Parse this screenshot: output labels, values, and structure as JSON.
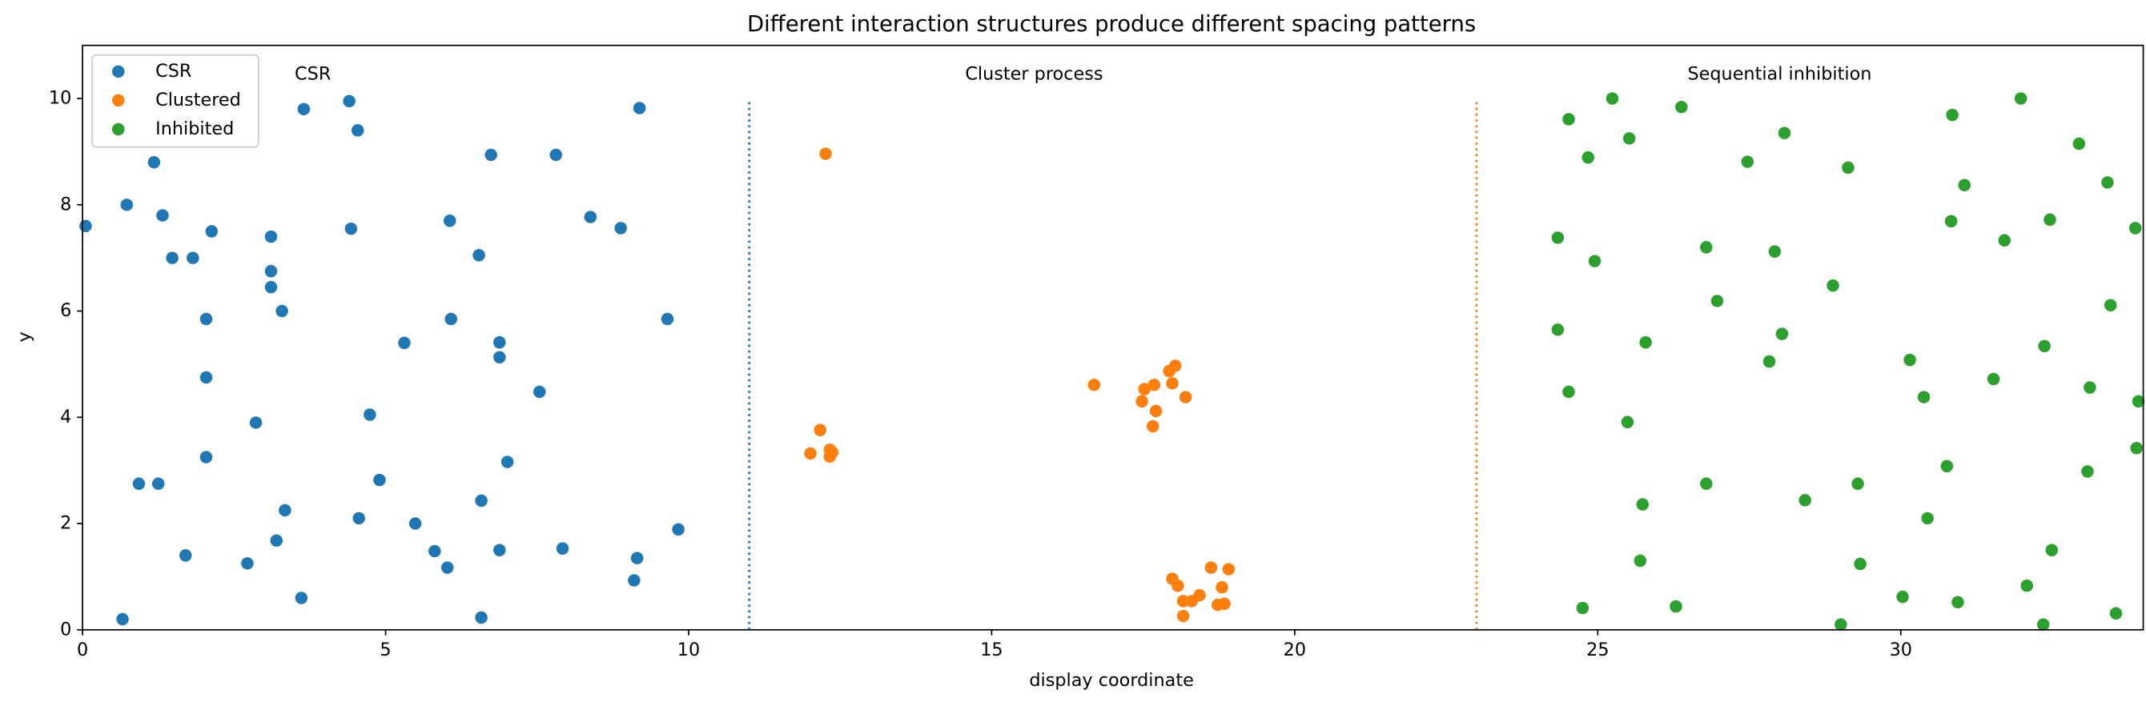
{
  "chart_data": {
    "type": "scatter",
    "title": "Different interaction structures produce different spacing patterns",
    "xlabel": "display coordinate",
    "ylabel": "y",
    "xlim": [
      0,
      34
    ],
    "ylim": [
      0,
      11
    ],
    "xticks": [
      0,
      5,
      10,
      15,
      20,
      25,
      30
    ],
    "yticks": [
      0,
      2,
      4,
      6,
      8,
      10
    ],
    "grid": false,
    "legend": "upper left",
    "annotations": [
      {
        "text": "CSR",
        "x": 3.8,
        "y": 10.45
      },
      {
        "text": "Cluster process",
        "x": 15.7,
        "y": 10.45
      },
      {
        "text": "Sequential inhibition",
        "x": 28.0,
        "y": 10.45
      }
    ],
    "vlines": [
      {
        "x": 11,
        "ymin": 0,
        "ymax": 10,
        "color": "#1f77b4"
      },
      {
        "x": 23,
        "ymin": 0,
        "ymax": 10,
        "color": "#ff7f0e"
      }
    ],
    "series": [
      {
        "name": "CSR",
        "color": "#1f77b4",
        "x": [
          0.05,
          0.73,
          1.18,
          1.32,
          1.48,
          1.82,
          2.13,
          0.93,
          1.25,
          0.66,
          1.7,
          2.04,
          2.04,
          2.04,
          2.72,
          2.86,
          3.11,
          3.11,
          3.11,
          3.29,
          3.2,
          3.34,
          3.61,
          3.65,
          4.4,
          4.43,
          4.54,
          4.74,
          4.56,
          4.9,
          5.31,
          5.49,
          5.81,
          6.02,
          6.06,
          6.08,
          6.54,
          6.58,
          6.58,
          6.74,
          6.88,
          6.88,
          6.88,
          7.01,
          7.54,
          7.81,
          7.92,
          8.38,
          8.88,
          9.1,
          9.15,
          9.19,
          9.65,
          9.83
        ],
        "y": [
          7.6,
          8.0,
          8.8,
          7.8,
          7.0,
          7.0,
          7.5,
          2.75,
          2.75,
          0.2,
          1.4,
          5.85,
          4.75,
          3.25,
          1.25,
          3.9,
          7.4,
          6.75,
          6.45,
          6.0,
          1.68,
          2.25,
          0.6,
          9.8,
          9.95,
          7.55,
          9.4,
          4.05,
          2.1,
          2.82,
          5.4,
          2.0,
          1.48,
          1.17,
          7.7,
          5.85,
          7.05,
          2.43,
          0.23,
          8.94,
          5.41,
          5.13,
          1.5,
          3.16,
          4.48,
          8.94,
          1.53,
          7.77,
          7.56,
          0.93,
          1.35,
          9.82,
          5.85,
          1.89
        ]
      },
      {
        "name": "Clustered",
        "color": "#ff7f0e",
        "x": [
          12.26,
          12.17,
          12.01,
          12.33,
          12.33,
          12.37,
          16.69,
          18.03,
          17.93,
          17.68,
          17.52,
          17.98,
          17.48,
          17.71,
          17.66,
          18.2,
          17.98,
          18.07,
          18.16,
          18.3,
          18.43,
          18.62,
          18.91,
          18.8,
          18.73,
          18.84,
          18.16
        ],
        "y": [
          8.96,
          3.76,
          3.32,
          3.39,
          3.26,
          3.34,
          4.61,
          4.97,
          4.87,
          4.61,
          4.53,
          4.64,
          4.3,
          4.12,
          3.83,
          4.38,
          0.96,
          0.83,
          0.54,
          0.54,
          0.65,
          1.17,
          1.14,
          0.8,
          0.47,
          0.49,
          0.26
        ]
      },
      {
        "name": "Inhibited",
        "color": "#2ca02c",
        "x": [
          24.52,
          25.24,
          26.38,
          24.84,
          25.52,
          28.08,
          27.47,
          29.13,
          30.85,
          31.98,
          32.94,
          33.41,
          31.05,
          30.83,
          31.71,
          32.46,
          33.87,
          24.34,
          24.95,
          26.79,
          27.92,
          26.97,
          28.88,
          33.46,
          24.34,
          25.79,
          28.04,
          27.83,
          30.15,
          32.37,
          24.52,
          25.49,
          30.38,
          31.53,
          33.12,
          33.92,
          33.89,
          33.08,
          26.79,
          28.42,
          29.29,
          30.76,
          30.44,
          25.74,
          25.7,
          29.33,
          32.49,
          24.75,
          26.29,
          30.03,
          30.94,
          29.01,
          32.08,
          32.35,
          33.55
        ],
        "y": [
          9.61,
          10.0,
          9.84,
          8.89,
          9.25,
          9.35,
          8.81,
          8.7,
          9.69,
          10.0,
          9.15,
          8.42,
          8.37,
          7.69,
          7.33,
          7.72,
          7.56,
          7.38,
          6.94,
          7.2,
          7.12,
          6.19,
          6.48,
          6.11,
          5.65,
          5.41,
          5.57,
          5.05,
          5.08,
          5.34,
          4.48,
          3.91,
          4.38,
          4.72,
          4.56,
          4.3,
          3.42,
          2.98,
          2.75,
          2.44,
          2.75,
          3.08,
          2.1,
          2.36,
          1.3,
          1.24,
          1.5,
          0.41,
          0.44,
          0.62,
          0.52,
          0.1,
          0.83,
          0.1,
          0.31
        ]
      }
    ]
  }
}
